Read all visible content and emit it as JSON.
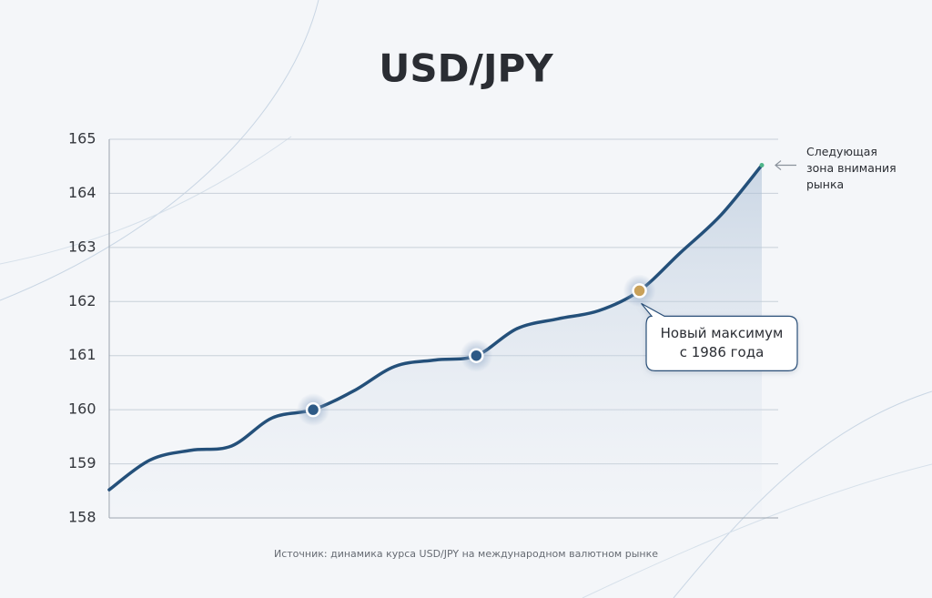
{
  "chart_data": {
    "type": "line",
    "title": "USD/JPY",
    "categories": [
      null,
      null,
      null,
      null,
      null,
      null,
      null,
      null,
      null,
      null,
      null,
      null,
      null,
      null,
      null,
      null,
      null
    ],
    "series": [
      {
        "name": "USD/JPY",
        "color": "#24507a",
        "values": [
          158.52,
          159.07,
          159.25,
          159.33,
          159.85,
          160.0,
          160.35,
          160.8,
          160.92,
          161.0,
          161.5,
          161.68,
          161.83,
          162.2,
          162.9,
          163.6,
          164.52
        ]
      }
    ],
    "markers": [
      {
        "index": 5,
        "color": "#2e5a86"
      },
      {
        "index": 9,
        "color": "#2e5a86"
      },
      {
        "index": 13,
        "color": "#c9a15a"
      }
    ],
    "ylim": [
      158,
      165
    ],
    "yticks": [
      158,
      159,
      160,
      161,
      162,
      163,
      164,
      165
    ],
    "grid": true,
    "annotations": [
      {
        "index": 13,
        "lines": [
          "Новый максимум",
          "с 1986 года"
        ]
      },
      {
        "index": 16,
        "lines": [
          "Следующая",
          "зона внимания",
          "рынка"
        ]
      }
    ],
    "source": "Источник: динамика курса USD/JPY на международном валютном рынке"
  }
}
